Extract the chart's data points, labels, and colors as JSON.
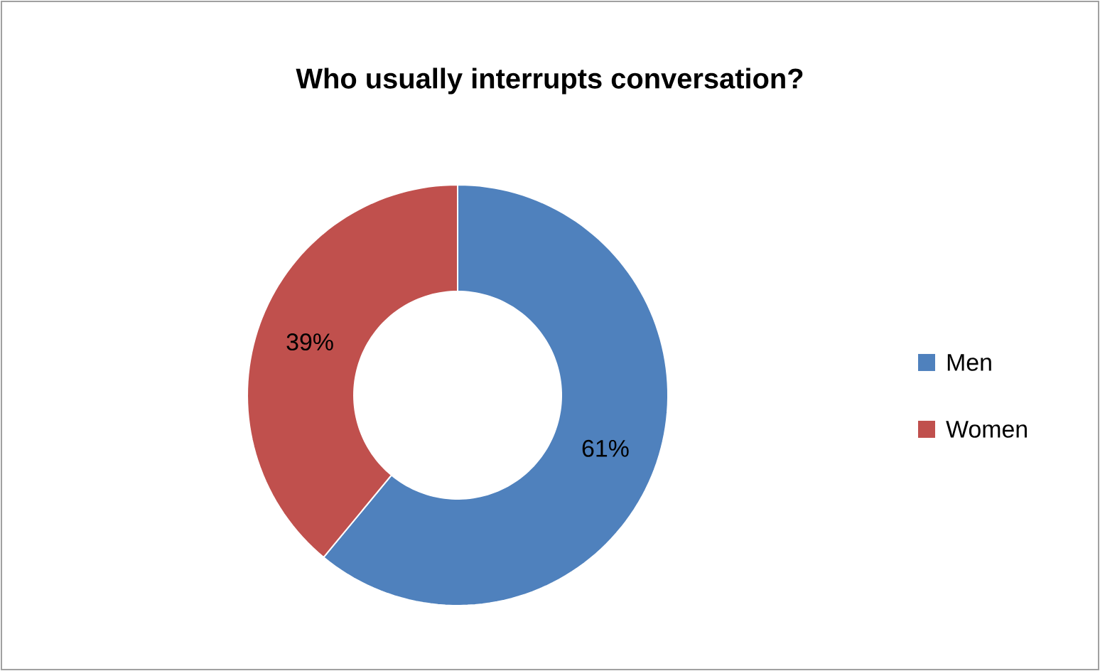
{
  "chart_data": {
    "type": "donut",
    "title": "Who usually interrupts conversation?",
    "categories": [
      "Men",
      "Women"
    ],
    "values": [
      61,
      39
    ],
    "colors": [
      "#4f81bd",
      "#c0504d"
    ],
    "value_labels": [
      "61%",
      "39%"
    ],
    "legend": "right"
  }
}
